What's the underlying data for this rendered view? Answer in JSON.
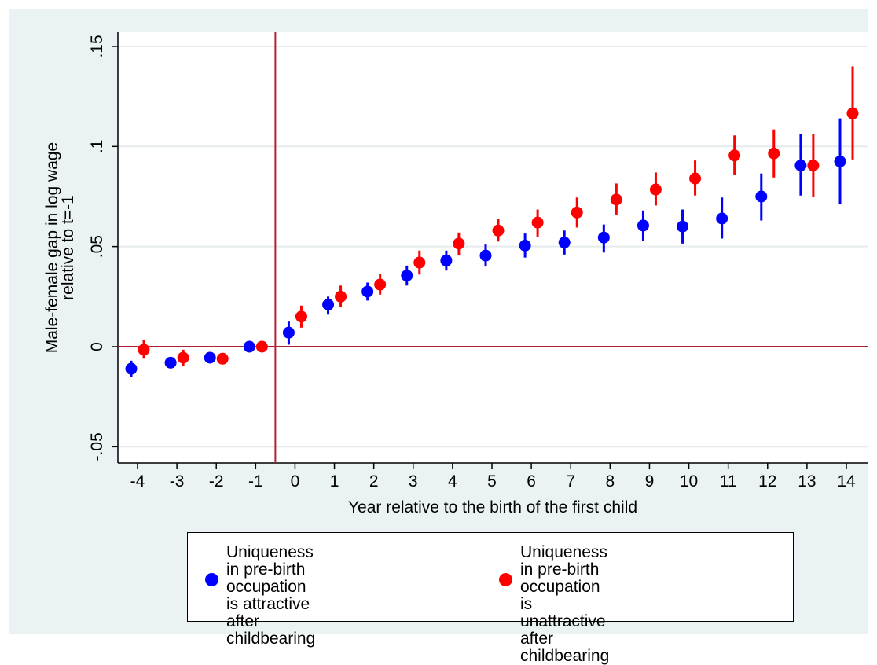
{
  "chart_data": {
    "type": "scatter",
    "title": "",
    "xlabel": "Year relative to the birth of the first child",
    "ylabel_line1": "Male-female gap in log wage",
    "ylabel_line2": "relative to t=-1",
    "xlim": [
      -4.5,
      14.5
    ],
    "ylim": [
      -0.06,
      0.157
    ],
    "x_ticks": [
      -4,
      -3,
      -2,
      -1,
      0,
      1,
      2,
      3,
      4,
      5,
      6,
      7,
      8,
      9,
      10,
      11,
      12,
      13,
      14
    ],
    "x_tick_labels": [
      "-4",
      "-3",
      "-2",
      "-1",
      "0",
      "1",
      "2",
      "3",
      "4",
      "5",
      "6",
      "7",
      "8",
      "9",
      "10",
      "11",
      "12",
      "13",
      "14"
    ],
    "y_ticks": [
      -0.05,
      0,
      0.05,
      0.1,
      0.15
    ],
    "y_tick_labels": [
      "-.05",
      "0",
      ".05",
      ".1",
      ".15"
    ],
    "grid": true,
    "reference_lines": {
      "vertical_x": -0.5,
      "horizontal_y": 0,
      "color": "#b22234"
    },
    "legend_position": "bottom",
    "series": [
      {
        "name": "Uniqueness in pre-birth\noccupation is attractive\nafter childbearing",
        "color": "#0000ff",
        "x": [
          -4,
          -3,
          -2,
          -1,
          0,
          1,
          2,
          3,
          4,
          5,
          6,
          7,
          8,
          9,
          10,
          11,
          12,
          13,
          14
        ],
        "y": [
          -0.011,
          -0.008,
          -0.0055,
          0,
          0.007,
          0.021,
          0.0275,
          0.0355,
          0.043,
          0.0455,
          0.0505,
          0.052,
          0.0545,
          0.0605,
          0.06,
          0.064,
          0.075,
          0.0905,
          0.0925
        ],
        "ci_low": [
          -0.015,
          -0.0105,
          -0.0075,
          -0.001,
          0.001,
          0.016,
          0.023,
          0.0305,
          0.038,
          0.04,
          0.0445,
          0.046,
          0.047,
          0.053,
          0.0515,
          0.054,
          0.063,
          0.0755,
          0.071
        ],
        "ci_high": [
          -0.007,
          -0.0055,
          -0.0035,
          0.001,
          0.0125,
          0.025,
          0.032,
          0.0405,
          0.048,
          0.051,
          0.0565,
          0.058,
          0.061,
          0.068,
          0.0685,
          0.0745,
          0.0865,
          0.106,
          0.114
        ]
      },
      {
        "name": "Uniqueness in pre-birth\noccupation is unattractive\nafter childbearing",
        "color": "#ff0000",
        "x": [
          -4,
          -3,
          -2,
          -1,
          0,
          1,
          2,
          3,
          4,
          5,
          6,
          7,
          8,
          9,
          10,
          11,
          12,
          13,
          14
        ],
        "y": [
          -0.0015,
          -0.0055,
          -0.006,
          0,
          0.015,
          0.025,
          0.031,
          0.042,
          0.0515,
          0.058,
          0.062,
          0.067,
          0.0735,
          0.0785,
          0.084,
          0.0955,
          0.0965,
          0.0905,
          0.1165
        ],
        "ci_low": [
          -0.006,
          -0.0095,
          -0.0075,
          -0.001,
          0.0095,
          0.02,
          0.026,
          0.036,
          0.0455,
          0.0525,
          0.055,
          0.0595,
          0.066,
          0.0705,
          0.0755,
          0.086,
          0.0845,
          0.075,
          0.0935
        ],
        "ci_high": [
          0.0035,
          -0.0015,
          -0.0045,
          0.001,
          0.0205,
          0.0305,
          0.0365,
          0.048,
          0.057,
          0.064,
          0.0685,
          0.0745,
          0.0815,
          0.087,
          0.093,
          0.1055,
          0.1085,
          0.106,
          0.14
        ]
      }
    ]
  }
}
